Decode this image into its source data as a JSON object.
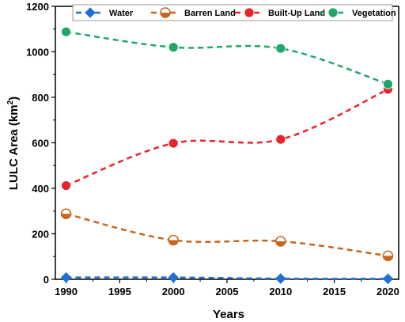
{
  "chart_data": {
    "type": "line",
    "title": "",
    "xlabel": "Years",
    "ylabel_main": "LULC Area (km",
    "ylabel_sup": "2",
    "ylabel_close": ")",
    "xlim": [
      1989,
      2021
    ],
    "ylim": [
      0,
      1200
    ],
    "xticks": [
      1990,
      1995,
      2000,
      2005,
      2010,
      2015,
      2020
    ],
    "yticks": [
      0,
      200,
      400,
      600,
      800,
      1000,
      1200
    ],
    "grid": false,
    "legend": "top, horizontal",
    "x": [
      1990,
      2000,
      2010,
      2020
    ],
    "series": [
      {
        "name": "Water",
        "values": [
          8,
          8,
          3,
          2
        ],
        "color": "#1f6fd6",
        "marker": "diamond"
      },
      {
        "name": "Barren Land",
        "values": [
          288,
          172,
          167,
          103
        ],
        "color": "#c8661c",
        "marker": "half-circle"
      },
      {
        "name": "Built-Up Land",
        "values": [
          412,
          598,
          615,
          835
        ],
        "color": "#e8232a",
        "marker": "circle"
      },
      {
        "name": "Vegetation",
        "values": [
          1088,
          1020,
          1015,
          858
        ],
        "color": "#21a66a",
        "marker": "circle"
      }
    ]
  }
}
